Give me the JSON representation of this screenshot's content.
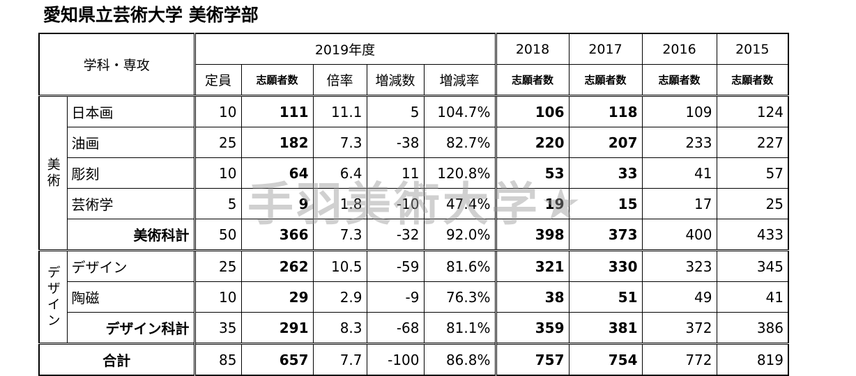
{
  "title": "愛知県立芸術大学 美術学部",
  "watermark": "手羽美術大学★",
  "header": {
    "dept": "学科・専攻",
    "year_current": "2019年度",
    "columns": [
      "定員",
      "志願者数",
      "倍率",
      "増減数",
      "増減率"
    ],
    "past_years": [
      {
        "year": "2018",
        "label": "志願者数"
      },
      {
        "year": "2017",
        "label": "志願者数"
      },
      {
        "year": "2016",
        "label": "志願者数"
      },
      {
        "year": "2015",
        "label": "志願者数"
      }
    ]
  },
  "groups": [
    {
      "name": "美術",
      "rows": [
        {
          "label": "日本画",
          "cells": [
            "10",
            "111",
            "11.1",
            "5",
            "104.7%",
            "106",
            "118",
            "109",
            "124"
          ]
        },
        {
          "label": "油画",
          "cells": [
            "25",
            "182",
            "7.3",
            "-38",
            "82.7%",
            "220",
            "207",
            "233",
            "227"
          ]
        },
        {
          "label": "彫刻",
          "cells": [
            "10",
            "64",
            "6.4",
            "11",
            "120.8%",
            "53",
            "33",
            "41",
            "57"
          ]
        },
        {
          "label": "芸術学",
          "cells": [
            "5",
            "9",
            "1.8",
            "-10",
            "47.4%",
            "19",
            "15",
            "17",
            "25"
          ]
        }
      ],
      "subtotal": {
        "label": "美術科計",
        "cells": [
          "50",
          "366",
          "7.3",
          "-32",
          "92.0%",
          "398",
          "373",
          "400",
          "433"
        ]
      }
    },
    {
      "name": "デザイン",
      "rows": [
        {
          "label": "デザイン",
          "cells": [
            "25",
            "262",
            "10.5",
            "-59",
            "81.6%",
            "321",
            "330",
            "323",
            "345"
          ]
        },
        {
          "label": "陶磁",
          "cells": [
            "10",
            "29",
            "2.9",
            "-9",
            "76.3%",
            "38",
            "51",
            "49",
            "41"
          ]
        }
      ],
      "subtotal": {
        "label": "デザイン科計",
        "cells": [
          "35",
          "291",
          "8.3",
          "-68",
          "81.1%",
          "359",
          "381",
          "372",
          "386"
        ]
      }
    }
  ],
  "total": {
    "label": "合計",
    "cells": [
      "85",
      "657",
      "7.7",
      "-100",
      "86.8%",
      "757",
      "754",
      "772",
      "819"
    ]
  }
}
